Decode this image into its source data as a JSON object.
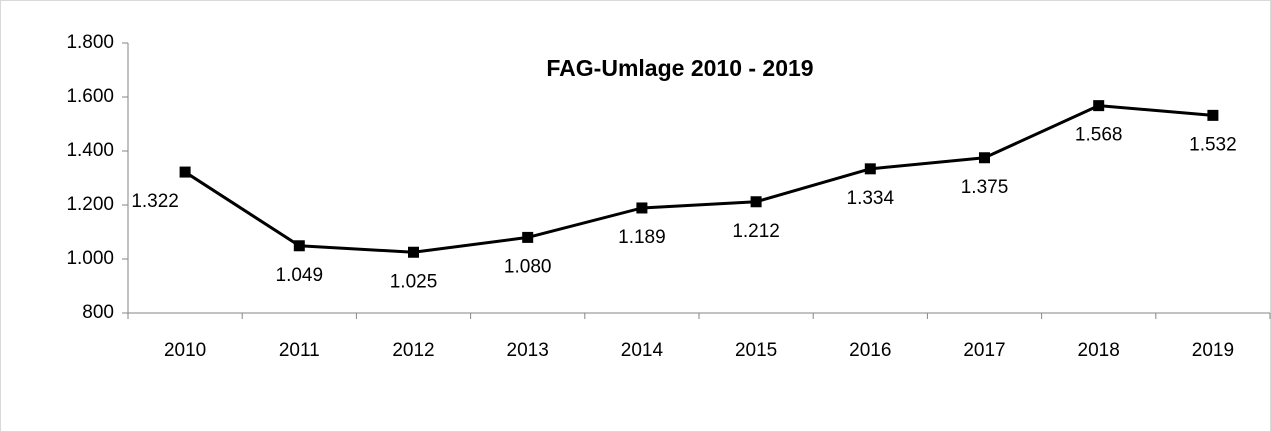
{
  "chart_data": {
    "type": "line",
    "title": "FAG-Umlage 2010 - 2019",
    "categories": [
      "2010",
      "2011",
      "2012",
      "2013",
      "2014",
      "2015",
      "2016",
      "2017",
      "2018",
      "2019"
    ],
    "values": [
      1322,
      1049,
      1025,
      1080,
      1189,
      1212,
      1334,
      1375,
      1568,
      1532
    ],
    "value_labels": [
      "1.322",
      "1.049",
      "1.025",
      "1.080",
      "1.189",
      "1.212",
      "1.334",
      "1.375",
      "1.568",
      "1.532"
    ],
    "color": "#000000",
    "ylim": [
      800,
      1800
    ],
    "yticks": [
      {
        "value": 800,
        "label": "800"
      },
      {
        "value": 1000,
        "label": "1.000"
      },
      {
        "value": 1200,
        "label": "1.200"
      },
      {
        "value": 1400,
        "label": "1.400"
      },
      {
        "value": 1600,
        "label": "1.600"
      },
      {
        "value": 1800,
        "label": "1.800"
      }
    ],
    "grid": false
  }
}
